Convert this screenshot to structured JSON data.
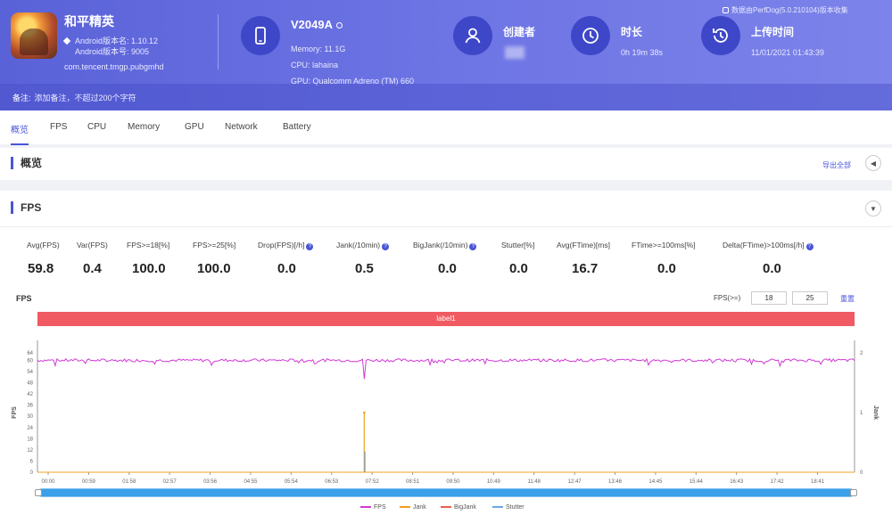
{
  "app": {
    "name": "和平精英",
    "android_version": "Android版本名: 1.10.12",
    "android_code": "Android版本号: 9005",
    "package": "com.tencent.tmgp.pubgmhd"
  },
  "device": {
    "name": "V2049A",
    "memory": "Memory: 11.1G",
    "cpu": "CPU: lahaina",
    "gpu": "GPU: Qualcomm Adreno (TM) 660"
  },
  "creator": {
    "label": "创建者"
  },
  "duration": {
    "label": "时长",
    "value": "0h 19m 38s"
  },
  "upload": {
    "label": "上传时间",
    "value": "11/01/2021 01:43:39"
  },
  "top_note": "数据由PerfDog(5.0.210104)版本收集",
  "remark": {
    "label": "备注:",
    "placeholder": "添加备注，不超过200个字符"
  },
  "tabs": [
    "概览",
    "FPS",
    "CPU",
    "Memory",
    "GPU",
    "Network",
    "Battery"
  ],
  "overview": {
    "title": "概览",
    "export": "导出全部"
  },
  "fps_section": {
    "title": "FPS"
  },
  "stats": [
    {
      "label": "Avg(FPS)",
      "value": "59.8",
      "help": false
    },
    {
      "label": "Var(FPS)",
      "value": "0.4",
      "help": false
    },
    {
      "label": "FPS>=18[%]",
      "value": "100.0",
      "help": false
    },
    {
      "label": "FPS>=25[%]",
      "value": "100.0",
      "help": false
    },
    {
      "label": "Drop(FPS)[/h]",
      "value": "0.0",
      "help": true
    },
    {
      "label": "Jank(/10min)",
      "value": "0.5",
      "help": true
    },
    {
      "label": "BigJank(/10min)",
      "value": "0.0",
      "help": true
    },
    {
      "label": "Stutter[%]",
      "value": "0.0",
      "help": false
    },
    {
      "label": "Avg(FTime)[ms]",
      "value": "16.7",
      "help": false
    },
    {
      "label": "FTime>=100ms[%]",
      "value": "0.0",
      "help": false
    },
    {
      "label": "Delta(FTime)>100ms[/h]",
      "value": "0.0",
      "help": true
    }
  ],
  "chart_controls": {
    "title": "FPS",
    "range_label": "FPS(>=)",
    "min1": "18",
    "min2": "25",
    "reset": "重置",
    "band_label": "label1"
  },
  "chart_data": {
    "type": "line",
    "ylabel": "FPS",
    "y2label": "Jank",
    "ylim": [
      0,
      64
    ],
    "y2lim": [
      0,
      2
    ],
    "yticks": [
      "0",
      "6",
      "12",
      "18",
      "24",
      "30",
      "36",
      "42",
      "48",
      "54",
      "60",
      "64"
    ],
    "y2ticks": [
      "0",
      "1",
      "2"
    ],
    "xticks": [
      "00:00",
      "00:59",
      "01:58",
      "02:57",
      "03:56",
      "04:55",
      "05:54",
      "06:53",
      "07:52",
      "08:51",
      "09:50",
      "10:49",
      "11:48",
      "12:47",
      "13:46",
      "14:45",
      "15:44",
      "16:43",
      "17:42",
      "18:41"
    ],
    "series": [
      {
        "name": "FPS",
        "color": "#d23ad6",
        "typical": 60,
        "dips": [
          {
            "x_min": 7.85,
            "y": 50
          }
        ]
      },
      {
        "name": "Jank",
        "color": "#f0a020",
        "spikes": [
          {
            "x_min": 7.85,
            "y": 1
          }
        ]
      },
      {
        "name": "BigJank",
        "color": "#e8604c",
        "spikes": []
      },
      {
        "name": "Stutter",
        "color": "#6aa6e0",
        "spikes": [
          {
            "x_min": 7.85,
            "y": 0.35
          }
        ]
      }
    ],
    "duration_min": 19.63
  }
}
